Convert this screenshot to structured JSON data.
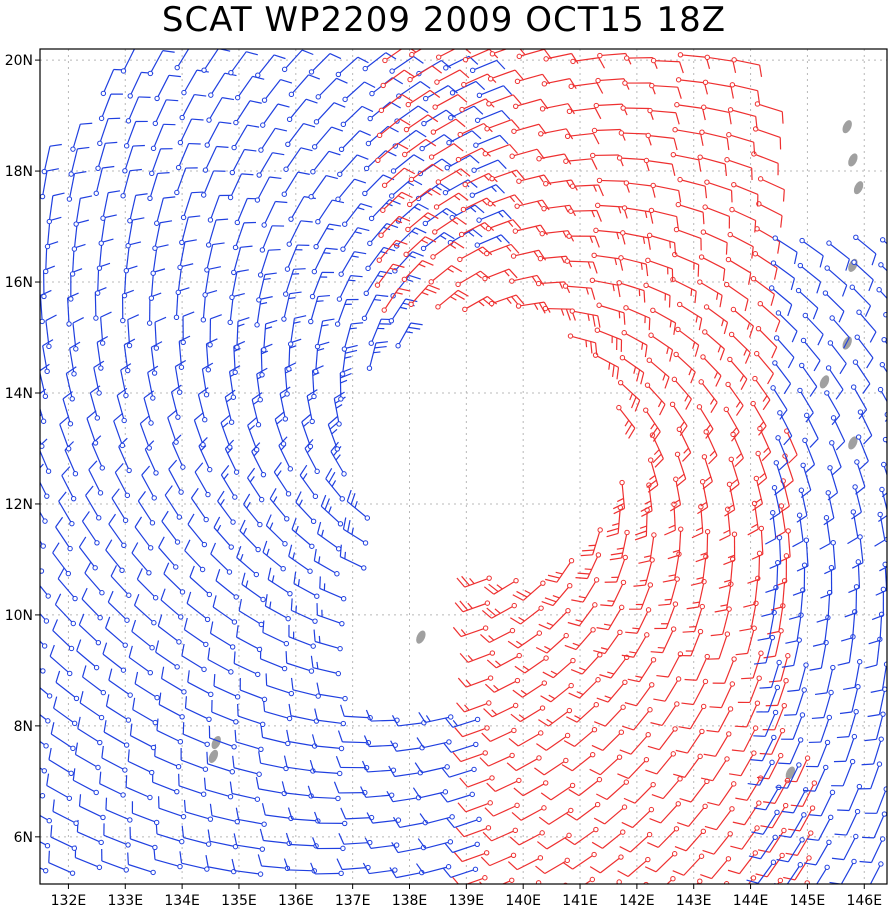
{
  "title": "SCAT WP2209 2009 OCT15 18Z",
  "axes": {
    "lon_labels": [
      "132E",
      "133E",
      "134E",
      "135E",
      "136E",
      "137E",
      "138E",
      "139E",
      "140E",
      "141E",
      "142E",
      "143E",
      "144E",
      "145E",
      "146E"
    ],
    "lon_values": [
      132,
      133,
      134,
      135,
      136,
      137,
      138,
      139,
      140,
      141,
      142,
      143,
      144,
      145,
      146
    ],
    "lat_labels": [
      "6N",
      "8N",
      "10N",
      "12N",
      "14N",
      "16N",
      "18N",
      "20N"
    ],
    "lat_values": [
      6,
      8,
      10,
      12,
      14,
      16,
      18,
      20
    ],
    "lon_range": [
      131.5,
      146.4
    ],
    "lat_range": [
      5.15,
      20.2
    ],
    "grid": true
  },
  "colors": {
    "pass_west": "#2040e0",
    "pass_east": "#ee3030",
    "land": "#a0a0a0",
    "grid": "#b8b8b8"
  },
  "passes": [
    {
      "color_key": "pass_west",
      "lon_min": 131.6,
      "lon_max": 139.6,
      "lat_min": 5.4,
      "lat_max": 20.1
    },
    {
      "color_key": "pass_east",
      "lon_min": 137.5,
      "lon_max": 145.2,
      "lat_min": 5.2,
      "lat_max": 20.1
    },
    {
      "color_key": "pass_west",
      "lon_min": 143.5,
      "lon_max": 146.4,
      "lat_min": 5.5,
      "lat_max": 17.0
    }
  ],
  "land": [
    {
      "name": "palau",
      "lon": 134.55,
      "lat": 7.45
    },
    {
      "name": "palau-north",
      "lon": 134.6,
      "lat": 7.7
    },
    {
      "name": "ngulu",
      "lon": 138.2,
      "lat": 9.6
    },
    {
      "name": "yap",
      "lon": 144.7,
      "lat": 7.15
    },
    {
      "name": "islet-1",
      "lon": 145.8,
      "lat": 13.1
    },
    {
      "name": "islet-2",
      "lon": 145.3,
      "lat": 14.2
    },
    {
      "name": "islet-3",
      "lon": 145.7,
      "lat": 14.9
    },
    {
      "name": "islet-4",
      "lon": 145.8,
      "lat": 16.3
    },
    {
      "name": "islet-5",
      "lon": 145.8,
      "lat": 18.2
    },
    {
      "name": "islet-6",
      "lon": 145.9,
      "lat": 17.7
    },
    {
      "name": "islet-7",
      "lon": 145.7,
      "lat": 18.8
    }
  ],
  "storm_center": {
    "lon": 139.4,
    "lat": 13.0
  }
}
